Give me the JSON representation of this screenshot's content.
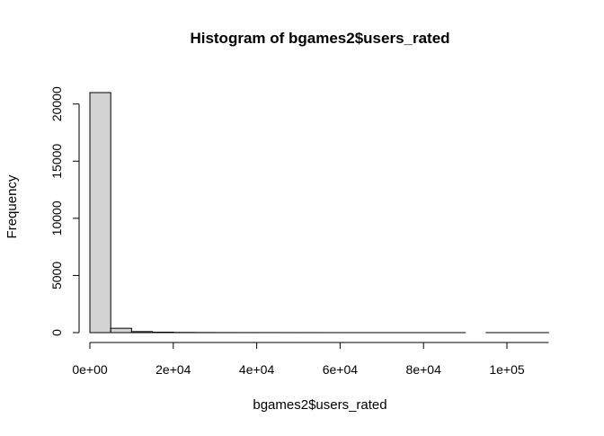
{
  "chart_data": {
    "type": "bar",
    "title": "Histogram of bgames2$users_rated",
    "xlabel": "bgames2$users_rated",
    "ylabel": "Frequency",
    "xlim": [
      0,
      110000
    ],
    "ylim": [
      0,
      21000
    ],
    "bin_width": 5000,
    "bins": [
      {
        "x0": 0,
        "x1": 5000,
        "count": 21000
      },
      {
        "x0": 5000,
        "x1": 10000,
        "count": 380
      },
      {
        "x0": 10000,
        "x1": 15000,
        "count": 90
      },
      {
        "x0": 15000,
        "x1": 20000,
        "count": 40
      },
      {
        "x0": 20000,
        "x1": 25000,
        "count": 18
      },
      {
        "x0": 25000,
        "x1": 30000,
        "count": 10
      },
      {
        "x0": 30000,
        "x1": 35000,
        "count": 6
      },
      {
        "x0": 35000,
        "x1": 40000,
        "count": 4
      },
      {
        "x0": 40000,
        "x1": 45000,
        "count": 3
      },
      {
        "x0": 45000,
        "x1": 50000,
        "count": 2
      },
      {
        "x0": 50000,
        "x1": 55000,
        "count": 2
      },
      {
        "x0": 55000,
        "x1": 60000,
        "count": 1
      },
      {
        "x0": 60000,
        "x1": 65000,
        "count": 1
      },
      {
        "x0": 65000,
        "x1": 70000,
        "count": 1
      },
      {
        "x0": 70000,
        "x1": 75000,
        "count": 1
      },
      {
        "x0": 75000,
        "x1": 80000,
        "count": 1
      },
      {
        "x0": 80000,
        "x1": 85000,
        "count": 1
      },
      {
        "x0": 85000,
        "x1": 90000,
        "count": 1
      },
      {
        "x0": 90000,
        "x1": 95000,
        "count": 0
      },
      {
        "x0": 95000,
        "x1": 100000,
        "count": 1
      },
      {
        "x0": 100000,
        "x1": 105000,
        "count": 1
      },
      {
        "x0": 105000,
        "x1": 110000,
        "count": 1
      }
    ],
    "x_ticks": [
      {
        "value": 0,
        "label": "0e+00"
      },
      {
        "value": 20000,
        "label": "2e+04"
      },
      {
        "value": 40000,
        "label": "4e+04"
      },
      {
        "value": 60000,
        "label": "6e+04"
      },
      {
        "value": 80000,
        "label": "8e+04"
      },
      {
        "value": 100000,
        "label": "1e+05"
      }
    ],
    "y_ticks": [
      {
        "value": 0,
        "label": "0"
      },
      {
        "value": 5000,
        "label": "5000"
      },
      {
        "value": 10000,
        "label": "10000"
      },
      {
        "value": 15000,
        "label": "15000"
      },
      {
        "value": 20000,
        "label": "20000"
      }
    ],
    "grid": false,
    "legend": "none",
    "bar_fill": "#d3d3d3",
    "bar_stroke": "#000000"
  }
}
